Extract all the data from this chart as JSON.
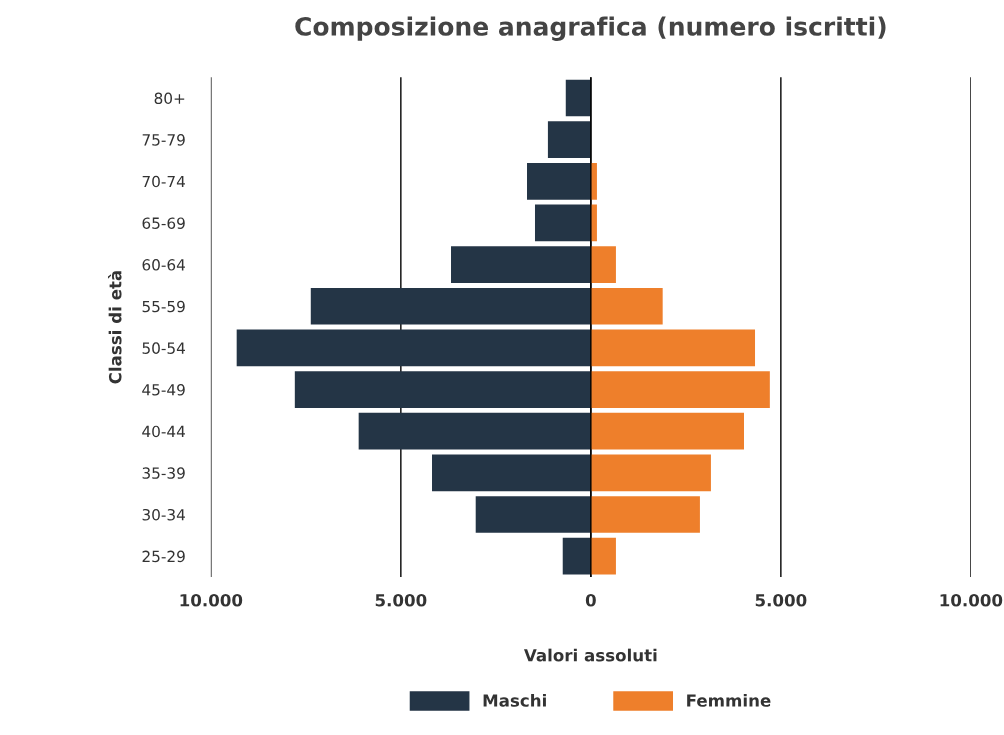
{
  "chart_data": {
    "type": "bar",
    "orientation": "horizontal",
    "title": "Composizione anagrafica (numero iscritti)",
    "xlabel": "Valori assoluti",
    "ylabel": "Classi di età",
    "categories": [
      "80+",
      "75-79",
      "70-74",
      "65-69",
      "60-64",
      "55-59",
      "50-54",
      "45-49",
      "40-44",
      "35-39",
      "30-34",
      "25-29"
    ],
    "series": [
      {
        "name": "Maschi",
        "color": "#243546",
        "values": [
          -660,
          -1130,
          -1680,
          -1470,
          -3680,
          -7370,
          -9320,
          -7790,
          -6110,
          -4180,
          -3030,
          -740
        ]
      },
      {
        "name": "Femmine",
        "color": "#ee7f2b",
        "values": [
          null,
          null,
          160,
          160,
          660,
          1890,
          4320,
          4710,
          4030,
          3160,
          2870,
          660
        ]
      }
    ],
    "xlim": [
      -10000,
      10000
    ],
    "xticks": [
      {
        "value": -10000,
        "label": "10.000"
      },
      {
        "value": -5000,
        "label": "5.000"
      },
      0,
      {
        "value": 5000,
        "label": "5.000"
      },
      {
        "value": 10000,
        "label": "10.000"
      }
    ],
    "stacked": true,
    "grid": "x",
    "legend": "bottom"
  }
}
